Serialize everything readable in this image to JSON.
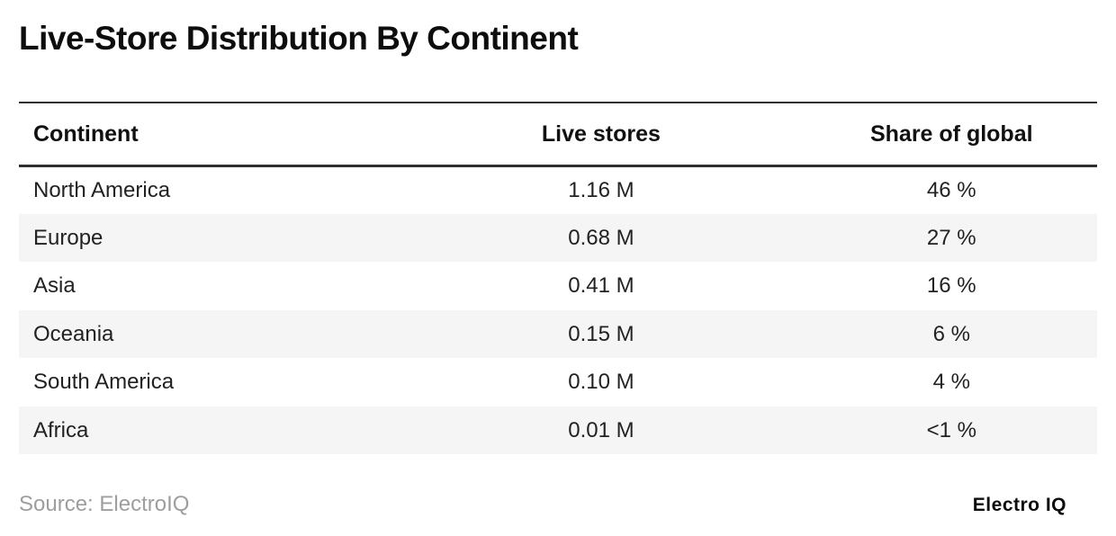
{
  "title": "Live-Store Distribution By Continent",
  "table": {
    "columns": {
      "continent": "Continent",
      "live_stores": "Live stores",
      "share": "Share of global"
    },
    "rows": [
      {
        "continent": "North America",
        "live_stores": "1.16 M",
        "share": "46 %"
      },
      {
        "continent": "Europe",
        "live_stores": "0.68 M",
        "share": "27 %"
      },
      {
        "continent": "Asia",
        "live_stores": "0.41 M",
        "share": "16 %"
      },
      {
        "continent": "Oceania",
        "live_stores": "0.15 M",
        "share": "6 %"
      },
      {
        "continent": "South America",
        "live_stores": "0.10 M",
        "share": "4 %"
      },
      {
        "continent": "Africa",
        "live_stores": "0.01 M",
        "share": "<1 %"
      }
    ]
  },
  "footer": {
    "source": "Source: ElectroIQ",
    "brand": "Electro IQ"
  },
  "colors": {
    "rule_dark": "#2f2f2f",
    "row_alt": "#f5f5f6",
    "text_primary": "#1f1f1f",
    "text_muted": "#9e9e9e"
  }
}
